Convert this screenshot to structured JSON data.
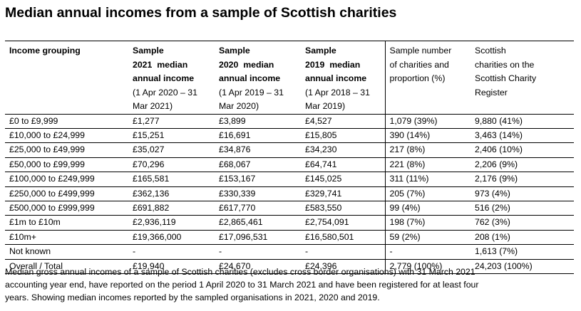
{
  "title": "Median annual incomes from a sample of Scottish charities",
  "table": {
    "headers": {
      "grouping": "Income grouping",
      "y2021": {
        "line1": "Sample",
        "line2": "2021  median",
        "line3": "annual income",
        "sub1": "(1 Apr 2020 – 31",
        "sub2": "Mar 2021)"
      },
      "y2020": {
        "line1": "Sample",
        "line2": "2020  median",
        "line3": "annual income",
        "sub1": "(1 Apr 2019 – 31",
        "sub2": "Mar 2020)"
      },
      "y2019": {
        "line1": "Sample",
        "line2": "2019  median",
        "line3": "annual income",
        "sub1": "(1 Apr 2018 – 31",
        "sub2": "Mar 2019)"
      },
      "sample": {
        "line1": "Sample number",
        "line2": "of charities and",
        "line3": "proportion (%)"
      },
      "register": {
        "line1": "Scottish",
        "line2": "charities on the",
        "line3": "Scottish Charity",
        "line4": "Register"
      }
    },
    "rows": [
      {
        "grouping": "£0 to £9,999",
        "y2021": "£1,277",
        "y2020": "£3,899",
        "y2019": "£4,527",
        "sample": "1,079 (39%)",
        "register": "9,880 (41%)"
      },
      {
        "grouping": "£10,000 to £24,999",
        "y2021": "£15,251",
        "y2020": "£16,691",
        "y2019": "£15,805",
        "sample": "390 (14%)",
        "register": "3,463 (14%)"
      },
      {
        "grouping": "£25,000 to £49,999",
        "y2021": "£35,027",
        "y2020": "£34,876",
        "y2019": "£34,230",
        "sample": "217 (8%)",
        "register": "2,406 (10%)"
      },
      {
        "grouping": "£50,000 to £99,999",
        "y2021": "£70,296",
        "y2020": "£68,067",
        "y2019": "£64,741",
        "sample": "221 (8%)",
        "register": "2,206 (9%)"
      },
      {
        "grouping": "£100,000 to £249,999",
        "y2021": "£165,581",
        "y2020": "£153,167",
        "y2019": "£145,025",
        "sample": "311 (11%)",
        "register": "2,176 (9%)"
      },
      {
        "grouping": "£250,000 to £499,999",
        "y2021": "£362,136",
        "y2020": "£330,339",
        "y2019": "£329,741",
        "sample": "205 (7%)",
        "register": "973 (4%)"
      },
      {
        "grouping": "£500,000 to £999,999",
        "y2021": "£691,882",
        "y2020": "£617,770",
        "y2019": "£583,550",
        "sample": "99 (4%)",
        "register": "516 (2%)"
      },
      {
        "grouping": "£1m to £10m",
        "y2021": "£2,936,119",
        "y2020": "£2,865,461",
        "y2019": "£2,754,091",
        "sample": "198 (7%)",
        "register": "762 (3%)"
      },
      {
        "grouping": "£10m+",
        "y2021": "£19,366,000",
        "y2020": "£17,096,531",
        "y2019": "£16,580,501",
        "sample": "59 (2%)",
        "register": "208 (1%)"
      },
      {
        "grouping": "Not known",
        "y2021": "-",
        "y2020": "-",
        "y2019": "-",
        "sample": "-",
        "register": "1,613 (7%)"
      },
      {
        "grouping": "Overall / Total",
        "y2021": "£19,940",
        "y2020": "£24,670",
        "y2019": "£24,396",
        "sample": "2,779 (100%)",
        "register": "24,203 (100%)"
      }
    ]
  },
  "note": {
    "line1": "Median gross annual incomes of a sample of Scottish charities (excludes cross border organisations) with 31 March 2021",
    "line2": "accounting year end, have reported on the period 1 April 2020 to 31 March 2021 and have been registered for at least four",
    "line3": "years. Showing median incomes reported by the sampled organisations in 2021, 2020 and 2019."
  }
}
